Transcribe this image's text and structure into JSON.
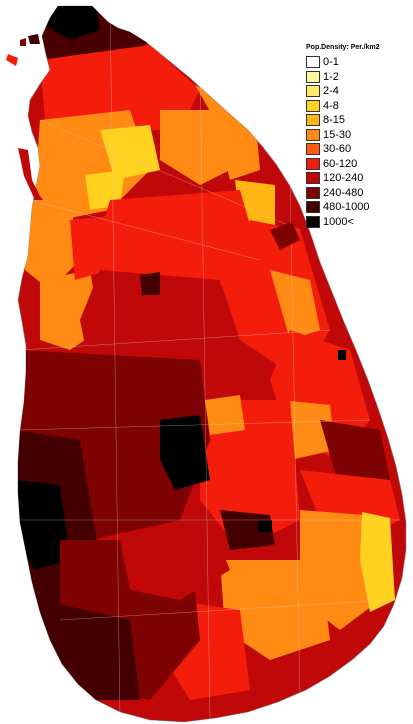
{
  "legend": {
    "title": "Pop.Density: Per./km2",
    "items": [
      {
        "label": "0-1",
        "color": "#ffffff"
      },
      {
        "label": "1-2",
        "color": "#fff7a0"
      },
      {
        "label": "2-4",
        "color": "#ffe96a"
      },
      {
        "label": "4-8",
        "color": "#ffd21f"
      },
      {
        "label": "8-15",
        "color": "#ffb612"
      },
      {
        "label": "15-30",
        "color": "#ff8a14"
      },
      {
        "label": "30-60",
        "color": "#ff5a0f"
      },
      {
        "label": "60-120",
        "color": "#f41d0c"
      },
      {
        "label": "120-240",
        "color": "#c00808"
      },
      {
        "label": "240-480",
        "color": "#7e0202"
      },
      {
        "label": "480-1000",
        "color": "#440000"
      },
      {
        "label": "1000<",
        "color": "#000000"
      }
    ]
  }
}
